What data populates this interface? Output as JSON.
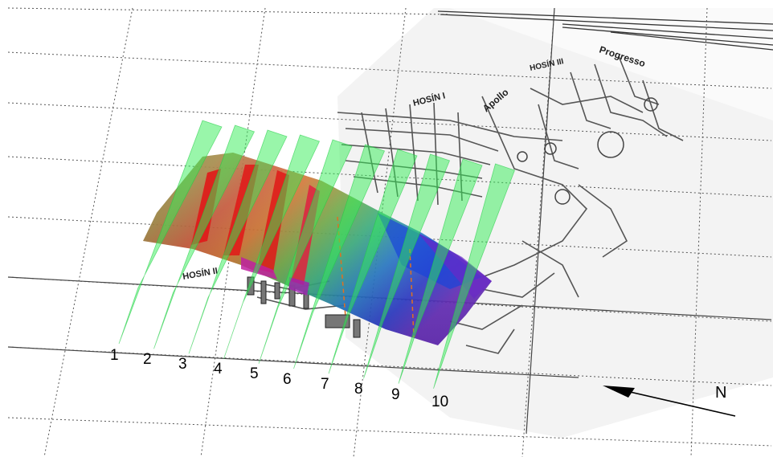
{
  "map_labels": {
    "hosin_1": "HOSÍN I",
    "hosin_2": "HOSÍN II",
    "hosin_3": "HOSÍN III",
    "apollo": "Apollo",
    "progresso": "Progresso"
  },
  "profile_numbers": [
    "1",
    "2",
    "3",
    "4",
    "5",
    "6",
    "7",
    "8",
    "9",
    "10"
  ],
  "north_arrow": {
    "label": "N"
  },
  "colors": {
    "profile_plane": "#33ee55",
    "surface_red": "#e02020",
    "surface_green": "#5aa838",
    "surface_blue": "#1a44d8",
    "surface_magenta": "#c020a0",
    "grid_line": "#555555"
  }
}
